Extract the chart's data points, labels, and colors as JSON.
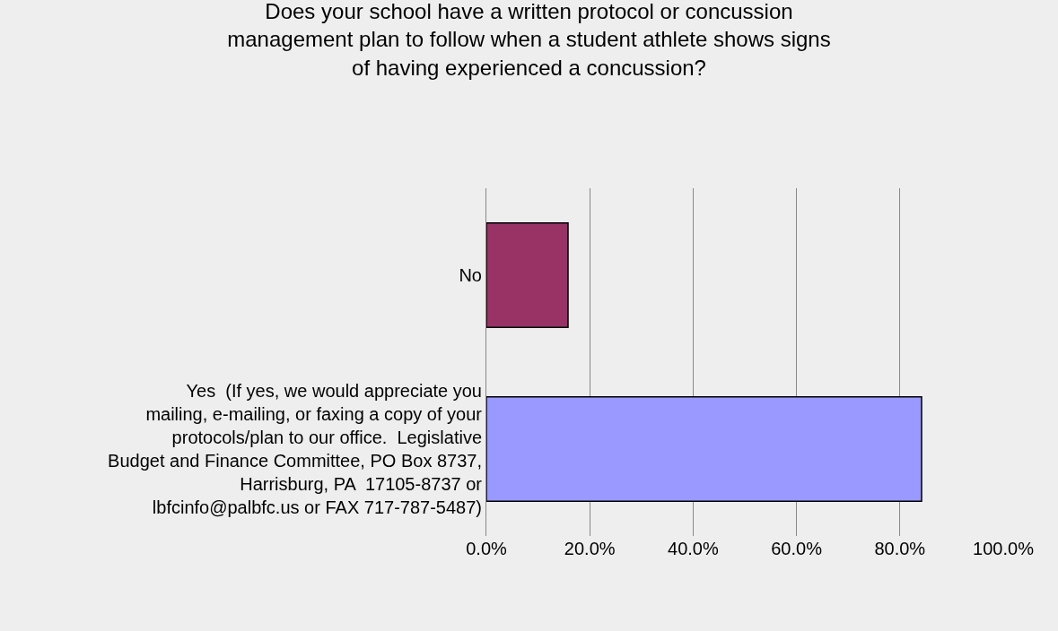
{
  "chart_data": {
    "type": "bar",
    "orientation": "horizontal",
    "title": "Does your school have a written protocol or concussion management plan to follow when a student athlete shows signs of having experienced a concussion?",
    "categories": [
      "No",
      "Yes  (If yes, we would appreciate you mailing, e-mailing, or faxing a copy of your protocols/plan to our office.  Legislative Budget and Finance Committee, PO Box 8737, Harrisburg, PA  17105-8737 or lbfcinfo@palbfc.us or FAX 717-787-5487)"
    ],
    "values": [
      15.8,
      84.2
    ],
    "colors": [
      "#993366",
      "#9999ff"
    ],
    "xlim": [
      0,
      100
    ],
    "xticks": [
      {
        "value": 0,
        "label": "0.0%"
      },
      {
        "value": 20,
        "label": "20.0%"
      },
      {
        "value": 40,
        "label": "40.0%"
      },
      {
        "value": 60,
        "label": "60.0%"
      },
      {
        "value": 80,
        "label": "80.0%"
      },
      {
        "value": 100,
        "label": "100.0%"
      }
    ],
    "grid": "x",
    "legend": false
  }
}
